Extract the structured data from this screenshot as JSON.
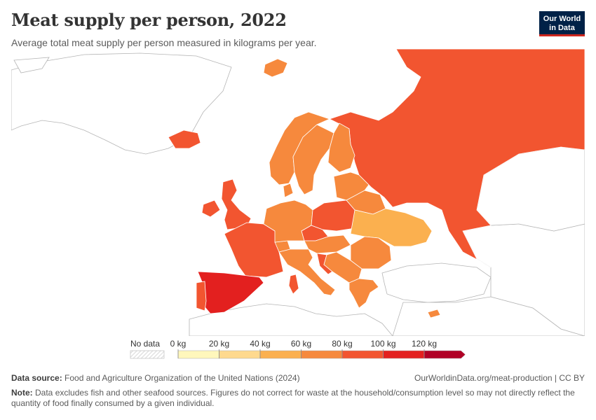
{
  "header": {
    "title": "Meat supply per person, 2022",
    "subtitle": "Average total meat supply per person measured in kilograms per year.",
    "logo_line1": "Our World",
    "logo_line2": "in Data"
  },
  "legend": {
    "no_data_label": "No data",
    "ticks": [
      "0 kg",
      "20 kg",
      "40 kg",
      "60 kg",
      "80 kg",
      "100 kg",
      "120 kg"
    ],
    "colors": [
      "#fff7bc",
      "#fed98e",
      "#fbb04f",
      "#f6893d",
      "#f25530",
      "#e3201f",
      "#b10026"
    ]
  },
  "colors": {
    "land_no_region": "#ffffff",
    "outline": "#b5b5b5",
    "country_stroke": "#ffffff"
  },
  "regions": [
    {
      "name": "Russia",
      "bin": 4
    },
    {
      "name": "Norway",
      "bin": 3
    },
    {
      "name": "Sweden",
      "bin": 3
    },
    {
      "name": "Finland",
      "bin": 3
    },
    {
      "name": "Iceland",
      "bin": 4
    },
    {
      "name": "Svalbard",
      "bin": 3
    },
    {
      "name": "United Kingdom",
      "bin": 4
    },
    {
      "name": "Ireland",
      "bin": 4
    },
    {
      "name": "France",
      "bin": 4
    },
    {
      "name": "Spain",
      "bin": 5
    },
    {
      "name": "Portugal",
      "bin": 4
    },
    {
      "name": "Germany",
      "bin": 3
    },
    {
      "name": "Poland",
      "bin": 4
    },
    {
      "name": "Ukraine",
      "bin": 2
    },
    {
      "name": "Belarus",
      "bin": 3
    },
    {
      "name": "Baltics",
      "bin": 3
    },
    {
      "name": "Italy",
      "bin": 3
    },
    {
      "name": "Romania",
      "bin": 3
    },
    {
      "name": "Czechia",
      "bin": 4
    },
    {
      "name": "Hungary",
      "bin": 3
    },
    {
      "name": "Balkans",
      "bin": 3
    },
    {
      "name": "Greece",
      "bin": 3
    },
    {
      "name": "Switzerland",
      "bin": 3
    },
    {
      "name": "Denmark",
      "bin": 3
    },
    {
      "name": "Croatia",
      "bin": 4
    },
    {
      "name": "Cyprus",
      "bin": 3
    },
    {
      "name": "Corsica-Sardinia",
      "bin": 4
    }
  ],
  "footer": {
    "source_label": "Data source:",
    "source_text": " Food and Agriculture Organization of the United Nations (2024)",
    "credit": "OurWorldinData.org/meat-production | CC BY",
    "note_label": "Note:",
    "note_text": " Data excludes fish and other seafood sources. Figures do not correct for waste at the household/consumption level so may not directly reflect the quantity of food finally consumed by a given individual."
  }
}
